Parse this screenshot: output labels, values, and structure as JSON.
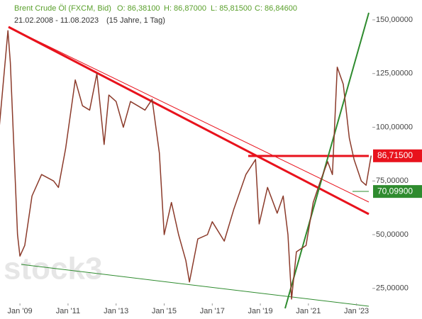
{
  "chart_data": {
    "type": "line",
    "title": "Brent Crude Öl (FXCM, Bid)",
    "ohlc": [
      "O: 86,38100",
      "H: 86,87000",
      "L: 85,81500",
      "C: 86,84600"
    ],
    "subtitle": "21.02.2008 - 11.08.2023",
    "period": "(15 Jahre, 1 Tag)",
    "watermark": "stock3",
    "x": [
      2008.14,
      2008.5,
      2008.6,
      2008.9,
      2009.0,
      2009.2,
      2009.5,
      2009.9,
      2010.4,
      2010.6,
      2010.9,
      2011.3,
      2011.6,
      2011.9,
      2012.2,
      2012.5,
      2012.7,
      2013.0,
      2013.3,
      2013.6,
      2013.9,
      2014.2,
      2014.5,
      2014.8,
      2015.0,
      2015.3,
      2015.6,
      2015.9,
      2016.05,
      2016.4,
      2016.8,
      2017.0,
      2017.5,
      2017.9,
      2018.4,
      2018.8,
      2018.95,
      2019.3,
      2019.7,
      2019.95,
      2020.15,
      2020.3,
      2020.5,
      2020.9,
      2021.2,
      2021.5,
      2021.8,
      2022.0,
      2022.2,
      2022.45,
      2022.7,
      2022.9,
      2023.2,
      2023.4,
      2023.61
    ],
    "series": [
      {
        "name": "Brent Crude Öl",
        "color": "#8b3a2a",
        "values": [
          100,
          145,
          130,
          50,
          40,
          45,
          68,
          78,
          75,
          72,
          90,
          122,
          110,
          108,
          125,
          92,
          115,
          112,
          100,
          112,
          110,
          108,
          113,
          88,
          50,
          65,
          50,
          38,
          28,
          48,
          50,
          56,
          47,
          62,
          78,
          85,
          55,
          72,
          60,
          68,
          50,
          20,
          42,
          45,
          65,
          75,
          84,
          78,
          128,
          120,
          95,
          85,
          75,
          73,
          86.8
        ]
      }
    ],
    "xlim": [
      2008.17,
      2023.66
    ],
    "xticks": [
      {
        "value": 2009,
        "label": "Jan '09"
      },
      {
        "value": 2011,
        "label": "Jan '11"
      },
      {
        "value": 2013,
        "label": "Jan '13"
      },
      {
        "value": 2015,
        "label": "Jan '15"
      },
      {
        "value": 2017,
        "label": "Jan '17"
      },
      {
        "value": 2019,
        "label": "Jan '19"
      },
      {
        "value": 2021,
        "label": "Jan '21"
      },
      {
        "value": 2023,
        "label": "Jan '23"
      }
    ],
    "ylim": [
      18.0,
      159.24
    ],
    "yticks": [
      {
        "value": 150,
        "label": "150,00000"
      },
      {
        "value": 125,
        "label": "125,00000"
      },
      {
        "value": 100,
        "label": "100,00000"
      },
      {
        "value": 75,
        "label": "75,00000"
      },
      {
        "value": 50,
        "label": "50,00000"
      },
      {
        "value": 25,
        "label": "25,00000"
      }
    ],
    "price_labels": [
      {
        "value": 86.715,
        "label": "86,71500",
        "color": "#e8121c"
      },
      {
        "value": 70.099,
        "label": "70,09900",
        "color": "#2e8b2e"
      }
    ]
  }
}
